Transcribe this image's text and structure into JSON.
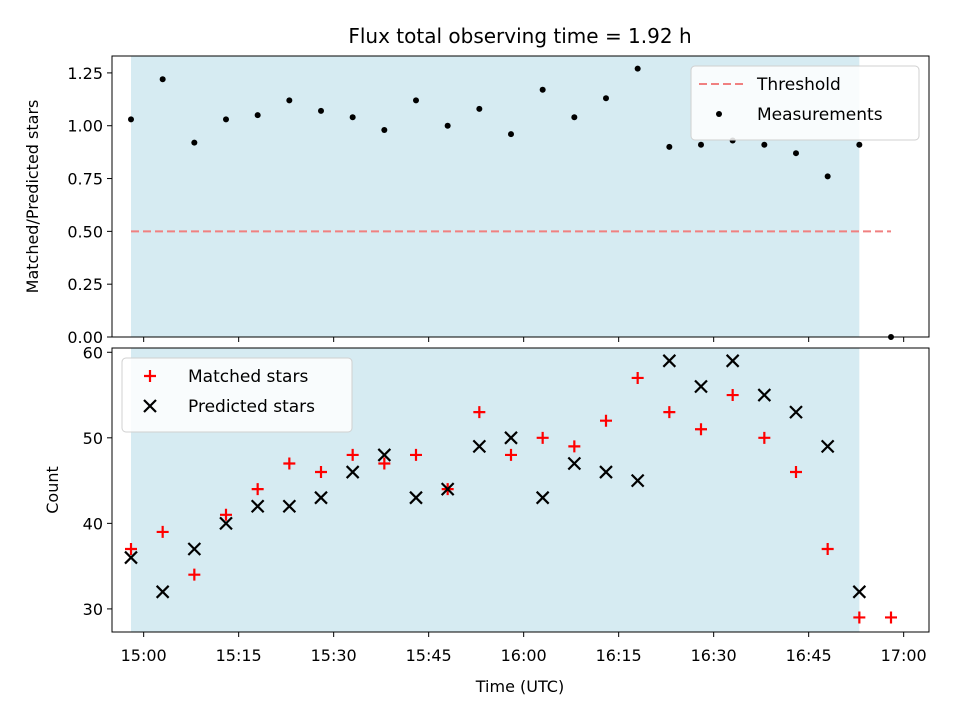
{
  "chart_data": {
    "title": "Flux total observing time = 1.92 h",
    "xlabel": "Time (UTC)",
    "x_ticks": [
      "15:00",
      "15:15",
      "15:30",
      "15:45",
      "16:00",
      "16:15",
      "16:30",
      "16:45",
      "17:00"
    ],
    "observing_window": {
      "start": "14:58",
      "end": "16:53",
      "color": "#add8e6"
    },
    "panels": [
      {
        "type": "scatter",
        "ylabel": "Matched/Predicted stars",
        "ylim": [
          0,
          1.33
        ],
        "y_ticks": [
          0.0,
          0.25,
          0.5,
          0.75,
          1.0,
          1.25
        ],
        "y_tick_labels": [
          "0.00",
          "0.25",
          "0.50",
          "0.75",
          "1.00",
          "1.25"
        ],
        "legend_position": "top-right",
        "threshold": {
          "name": "Threshold",
          "value": 0.5,
          "x_start": "14:58",
          "x_end": "16:58",
          "color": "#f08080"
        },
        "series": [
          {
            "name": "Measurements",
            "marker": "dot",
            "color": "#000000",
            "x": [
              "14:58",
              "15:03",
              "15:08",
              "15:13",
              "15:18",
              "15:23",
              "15:28",
              "15:33",
              "15:38",
              "15:43",
              "15:48",
              "15:53",
              "15:58",
              "16:03",
              "16:08",
              "16:13",
              "16:18",
              "16:23",
              "16:28",
              "16:33",
              "16:38",
              "16:43",
              "16:48",
              "16:53",
              "16:58"
            ],
            "y": [
              1.03,
              1.22,
              0.92,
              1.03,
              1.05,
              1.12,
              1.07,
              1.04,
              0.98,
              1.12,
              1.0,
              1.08,
              0.96,
              1.17,
              1.04,
              1.13,
              1.27,
              0.9,
              0.91,
              0.93,
              0.91,
              0.87,
              0.76,
              0.91,
              0.0
            ]
          }
        ]
      },
      {
        "type": "scatter",
        "ylabel": "Count",
        "ylim": [
          27.3,
          60.5
        ],
        "y_ticks": [
          30,
          40,
          50,
          60
        ],
        "y_tick_labels": [
          "30",
          "40",
          "50",
          "60"
        ],
        "legend_position": "top-left",
        "series": [
          {
            "name": "Matched stars",
            "marker": "plus",
            "color": "#ff0000",
            "x": [
              "14:58",
              "15:03",
              "15:08",
              "15:13",
              "15:18",
              "15:23",
              "15:28",
              "15:33",
              "15:38",
              "15:43",
              "15:48",
              "15:53",
              "15:58",
              "16:03",
              "16:08",
              "16:13",
              "16:18",
              "16:23",
              "16:28",
              "16:33",
              "16:38",
              "16:43",
              "16:48",
              "16:53",
              "16:58"
            ],
            "y": [
              37,
              39,
              34,
              41,
              44,
              47,
              46,
              48,
              47,
              48,
              44,
              53,
              48,
              50,
              49,
              52,
              57,
              53,
              51,
              55,
              50,
              46,
              37,
              29,
              29
            ]
          },
          {
            "name": "Predicted stars",
            "marker": "x",
            "color": "#000000",
            "x": [
              "14:58",
              "15:03",
              "15:08",
              "15:13",
              "15:18",
              "15:23",
              "15:28",
              "15:33",
              "15:38",
              "15:43",
              "15:48",
              "15:53",
              "15:58",
              "16:03",
              "16:08",
              "16:13",
              "16:18",
              "16:23",
              "16:28",
              "16:33",
              "16:38",
              "16:43",
              "16:48",
              "16:53"
            ],
            "y": [
              36,
              32,
              37,
              40,
              42,
              42,
              43,
              46,
              48,
              43,
              44,
              49,
              50,
              43,
              47,
              46,
              45,
              59,
              56,
              59,
              55,
              53,
              49,
              32
            ]
          }
        ]
      }
    ]
  }
}
